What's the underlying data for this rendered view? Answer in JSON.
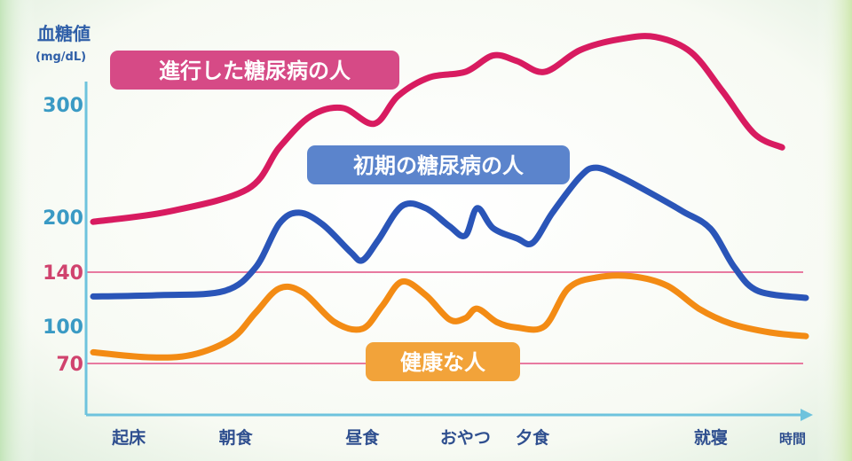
{
  "chart_data": {
    "type": "line",
    "ylabel": "血糖値",
    "yunit": "(mg/dL)",
    "xlabel": "時間",
    "x_events": [
      {
        "label": "起床",
        "t": 0.1
      },
      {
        "label": "朝食",
        "t": 1.45
      },
      {
        "label": "昼食",
        "t": 3.05
      },
      {
        "label": "おやつ",
        "t": 4.35
      },
      {
        "label": "夕食",
        "t": 5.2
      },
      {
        "label": "就寝",
        "t": 7.45
      }
    ],
    "xlim": [
      -0.35,
      8.65
    ],
    "y_ticks": [
      {
        "value": 300,
        "label": "300",
        "color": "#3a9ac4"
      },
      {
        "value": 200,
        "label": "200",
        "color": "#3a9ac4"
      },
      {
        "value": 140,
        "label": "140",
        "color": "#d0436e"
      },
      {
        "value": 100,
        "label": "100",
        "color": "#3a9ac4"
      },
      {
        "value": 70,
        "label": "70",
        "color": "#d0436e"
      }
    ],
    "reference_lines": [
      140,
      70
    ],
    "series": [
      {
        "name": "進行した糖尿病の人",
        "color": "#d81b60",
        "points": [
          [
            -0.35,
            195
          ],
          [
            0.6,
            205
          ],
          [
            1.6,
            225
          ],
          [
            2.0,
            262
          ],
          [
            2.4,
            290
          ],
          [
            2.8,
            297
          ],
          [
            3.2,
            283
          ],
          [
            3.5,
            308
          ],
          [
            3.9,
            325
          ],
          [
            4.35,
            330
          ],
          [
            4.7,
            345
          ],
          [
            5.0,
            340
          ],
          [
            5.35,
            330
          ],
          [
            5.8,
            350
          ],
          [
            6.3,
            360
          ],
          [
            6.75,
            362
          ],
          [
            7.2,
            348
          ],
          [
            7.6,
            312
          ],
          [
            8.0,
            274
          ],
          [
            8.35,
            262
          ]
        ]
      },
      {
        "name": "初期の糖尿病の人",
        "color": "#2a55b8",
        "points": [
          [
            -0.35,
            122
          ],
          [
            0.5,
            123
          ],
          [
            1.3,
            126
          ],
          [
            1.7,
            145
          ],
          [
            2.0,
            193
          ],
          [
            2.25,
            204
          ],
          [
            2.55,
            192
          ],
          [
            2.9,
            162
          ],
          [
            3.05,
            153
          ],
          [
            3.25,
            175
          ],
          [
            3.55,
            210
          ],
          [
            3.85,
            208
          ],
          [
            4.15,
            190
          ],
          [
            4.35,
            180
          ],
          [
            4.5,
            208
          ],
          [
            4.7,
            188
          ],
          [
            5.0,
            177
          ],
          [
            5.2,
            172
          ],
          [
            5.45,
            204
          ],
          [
            5.8,
            236
          ],
          [
            6.0,
            244
          ],
          [
            6.3,
            236
          ],
          [
            6.7,
            221
          ],
          [
            7.1,
            205
          ],
          [
            7.45,
            187
          ],
          [
            7.75,
            145
          ],
          [
            8.05,
            126
          ],
          [
            8.65,
            121
          ]
        ]
      },
      {
        "name": "健康な人",
        "color": "#f38b14",
        "points": [
          [
            -0.35,
            79
          ],
          [
            0.35,
            75
          ],
          [
            0.9,
            77
          ],
          [
            1.4,
            90
          ],
          [
            1.7,
            110
          ],
          [
            2.0,
            128
          ],
          [
            2.3,
            125
          ],
          [
            2.7,
            103
          ],
          [
            3.05,
            98
          ],
          [
            3.3,
            115
          ],
          [
            3.55,
            133
          ],
          [
            3.85,
            123
          ],
          [
            4.15,
            105
          ],
          [
            4.35,
            106
          ],
          [
            4.5,
            113
          ],
          [
            4.75,
            103
          ],
          [
            5.0,
            99
          ],
          [
            5.35,
            100
          ],
          [
            5.65,
            128
          ],
          [
            6.0,
            136
          ],
          [
            6.45,
            137
          ],
          [
            6.9,
            130
          ],
          [
            7.3,
            113
          ],
          [
            7.7,
            102
          ],
          [
            8.2,
            95
          ],
          [
            8.65,
            92
          ]
        ]
      }
    ]
  }
}
